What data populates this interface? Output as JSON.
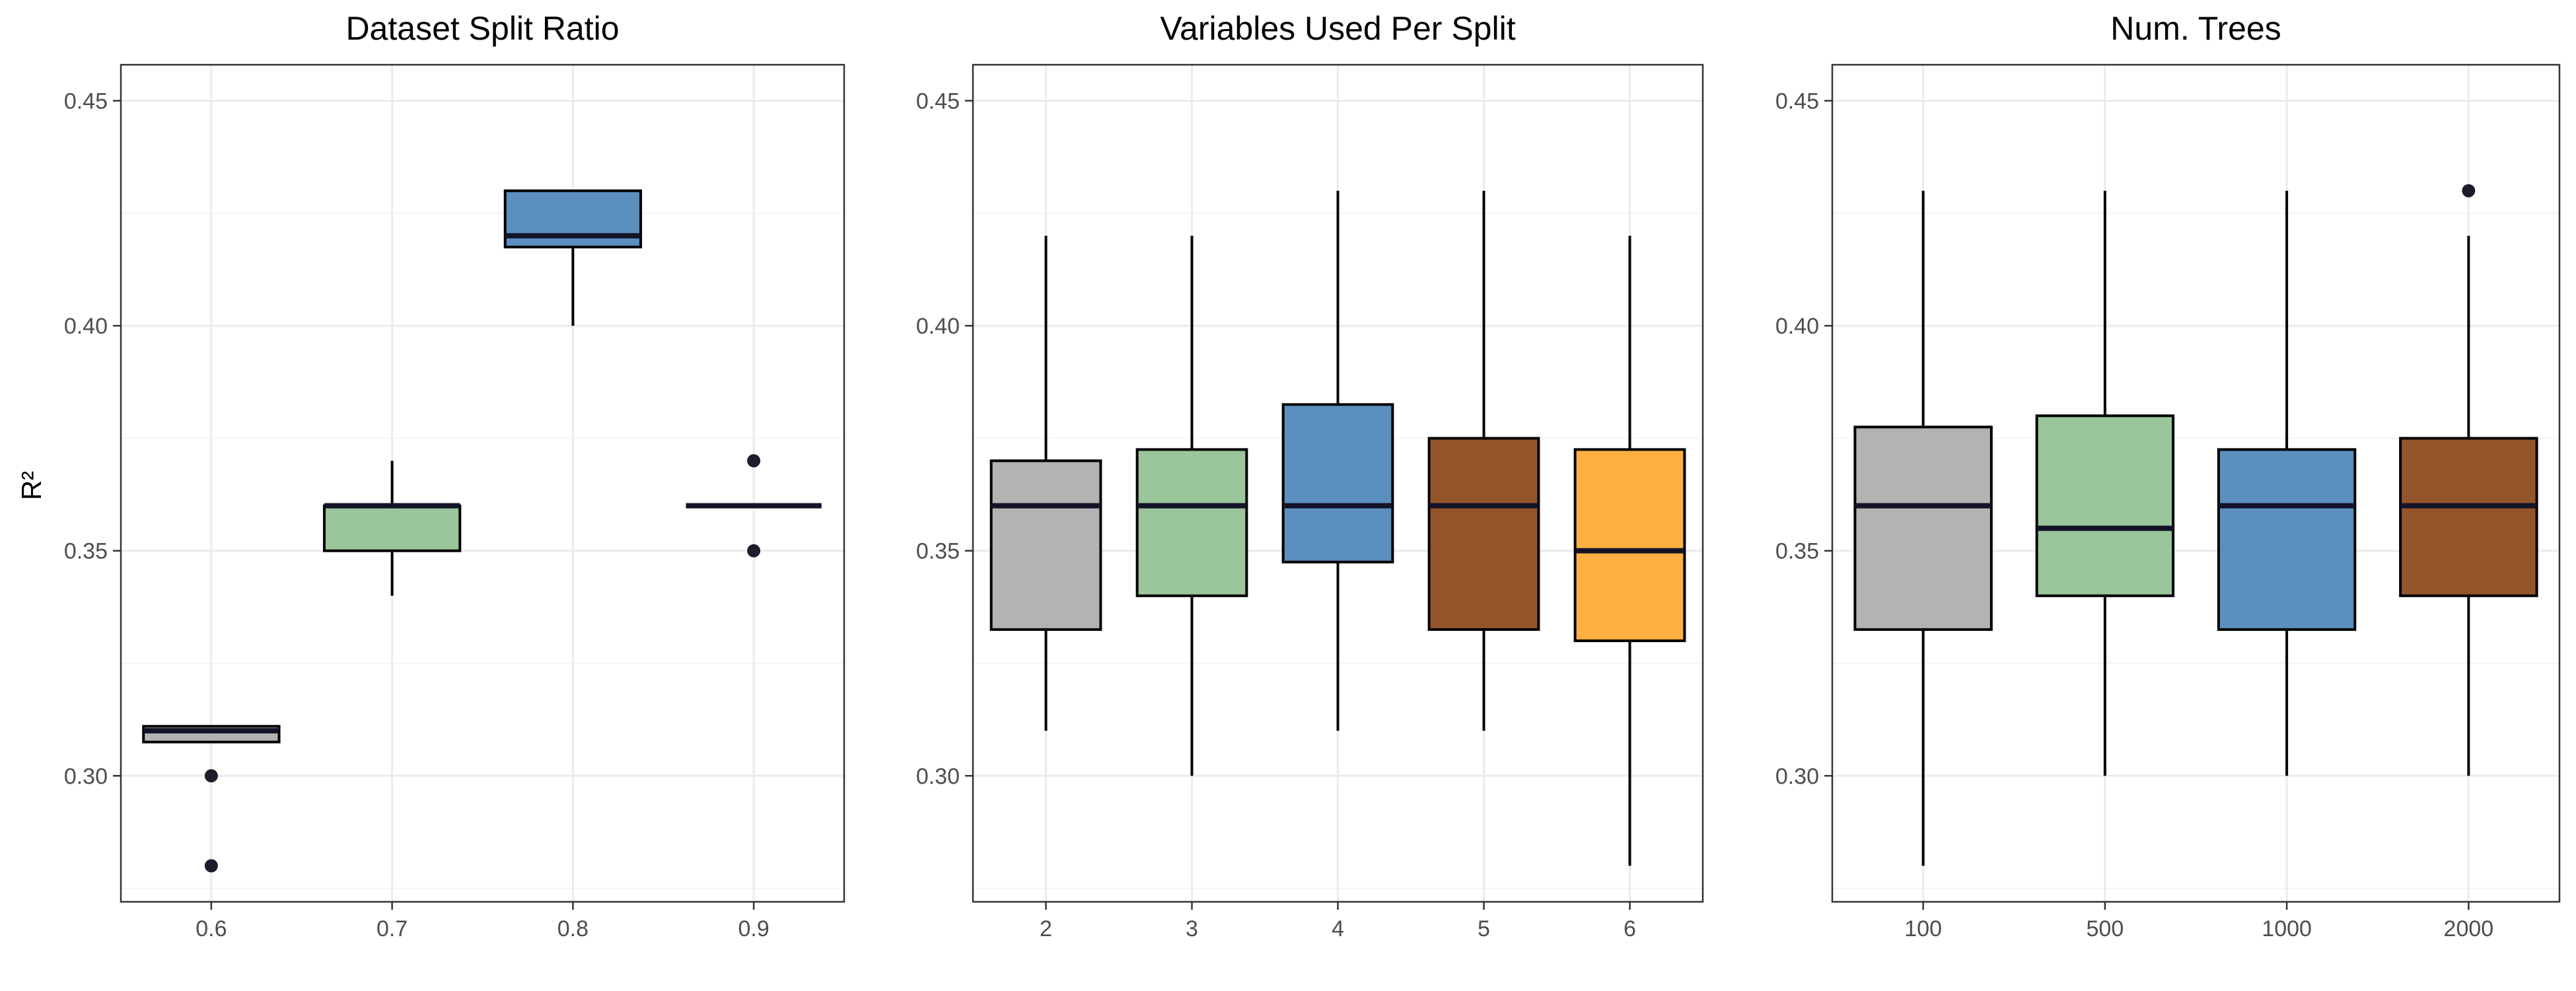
{
  "y_axis_title": "R²",
  "colors": [
    "#b3b3b3",
    "#9bc59b",
    "#5a8fc0",
    "#94552b",
    "#ffb043"
  ],
  "chart_data": [
    {
      "type": "box",
      "title": "Dataset Split Ratio",
      "ylabel": "R²",
      "ylim": [
        0.272,
        0.458
      ],
      "yticks": [
        "0.30",
        "0.35",
        "0.40",
        "0.45"
      ],
      "categories": [
        "0.6",
        "0.7",
        "0.8",
        "0.9"
      ],
      "boxes": [
        {
          "q1": 0.3075,
          "median": 0.31,
          "q3": 0.311,
          "whisker_low": 0.3075,
          "whisker_high": 0.311,
          "outliers": [
            0.3,
            0.28
          ]
        },
        {
          "q1": 0.35,
          "median": 0.36,
          "q3": 0.36,
          "whisker_low": 0.34,
          "whisker_high": 0.37,
          "outliers": []
        },
        {
          "q1": 0.4175,
          "median": 0.42,
          "q3": 0.43,
          "whisker_low": 0.4,
          "whisker_high": 0.43,
          "outliers": []
        },
        {
          "q1": 0.36,
          "median": 0.36,
          "q3": 0.36,
          "whisker_low": 0.36,
          "whisker_high": 0.36,
          "outliers": [
            0.37,
            0.35
          ]
        }
      ]
    },
    {
      "type": "box",
      "title": "Variables Used Per Split",
      "ylim": [
        0.272,
        0.458
      ],
      "yticks": [
        "0.30",
        "0.35",
        "0.40",
        "0.45"
      ],
      "categories": [
        "2",
        "3",
        "4",
        "5",
        "6"
      ],
      "boxes": [
        {
          "q1": 0.3325,
          "median": 0.36,
          "q3": 0.37,
          "whisker_low": 0.31,
          "whisker_high": 0.42,
          "outliers": []
        },
        {
          "q1": 0.34,
          "median": 0.36,
          "q3": 0.3725,
          "whisker_low": 0.3,
          "whisker_high": 0.42,
          "outliers": []
        },
        {
          "q1": 0.3475,
          "median": 0.36,
          "q3": 0.3825,
          "whisker_low": 0.31,
          "whisker_high": 0.43,
          "outliers": []
        },
        {
          "q1": 0.3325,
          "median": 0.36,
          "q3": 0.375,
          "whisker_low": 0.31,
          "whisker_high": 0.43,
          "outliers": []
        },
        {
          "q1": 0.33,
          "median": 0.35,
          "q3": 0.3725,
          "whisker_low": 0.28,
          "whisker_high": 0.42,
          "outliers": []
        }
      ]
    },
    {
      "type": "box",
      "title": "Num. Trees",
      "ylim": [
        0.272,
        0.458
      ],
      "yticks": [
        "0.30",
        "0.35",
        "0.40",
        "0.45"
      ],
      "categories": [
        "100",
        "500",
        "1000",
        "2000"
      ],
      "boxes": [
        {
          "q1": 0.3325,
          "median": 0.36,
          "q3": 0.3775,
          "whisker_low": 0.28,
          "whisker_high": 0.43,
          "outliers": []
        },
        {
          "q1": 0.34,
          "median": 0.355,
          "q3": 0.38,
          "whisker_low": 0.3,
          "whisker_high": 0.43,
          "outliers": []
        },
        {
          "q1": 0.3325,
          "median": 0.36,
          "q3": 0.3725,
          "whisker_low": 0.3,
          "whisker_high": 0.43,
          "outliers": []
        },
        {
          "q1": 0.34,
          "median": 0.36,
          "q3": 0.375,
          "whisker_low": 0.3,
          "whisker_high": 0.42,
          "outliers": [
            0.43
          ]
        }
      ]
    }
  ]
}
